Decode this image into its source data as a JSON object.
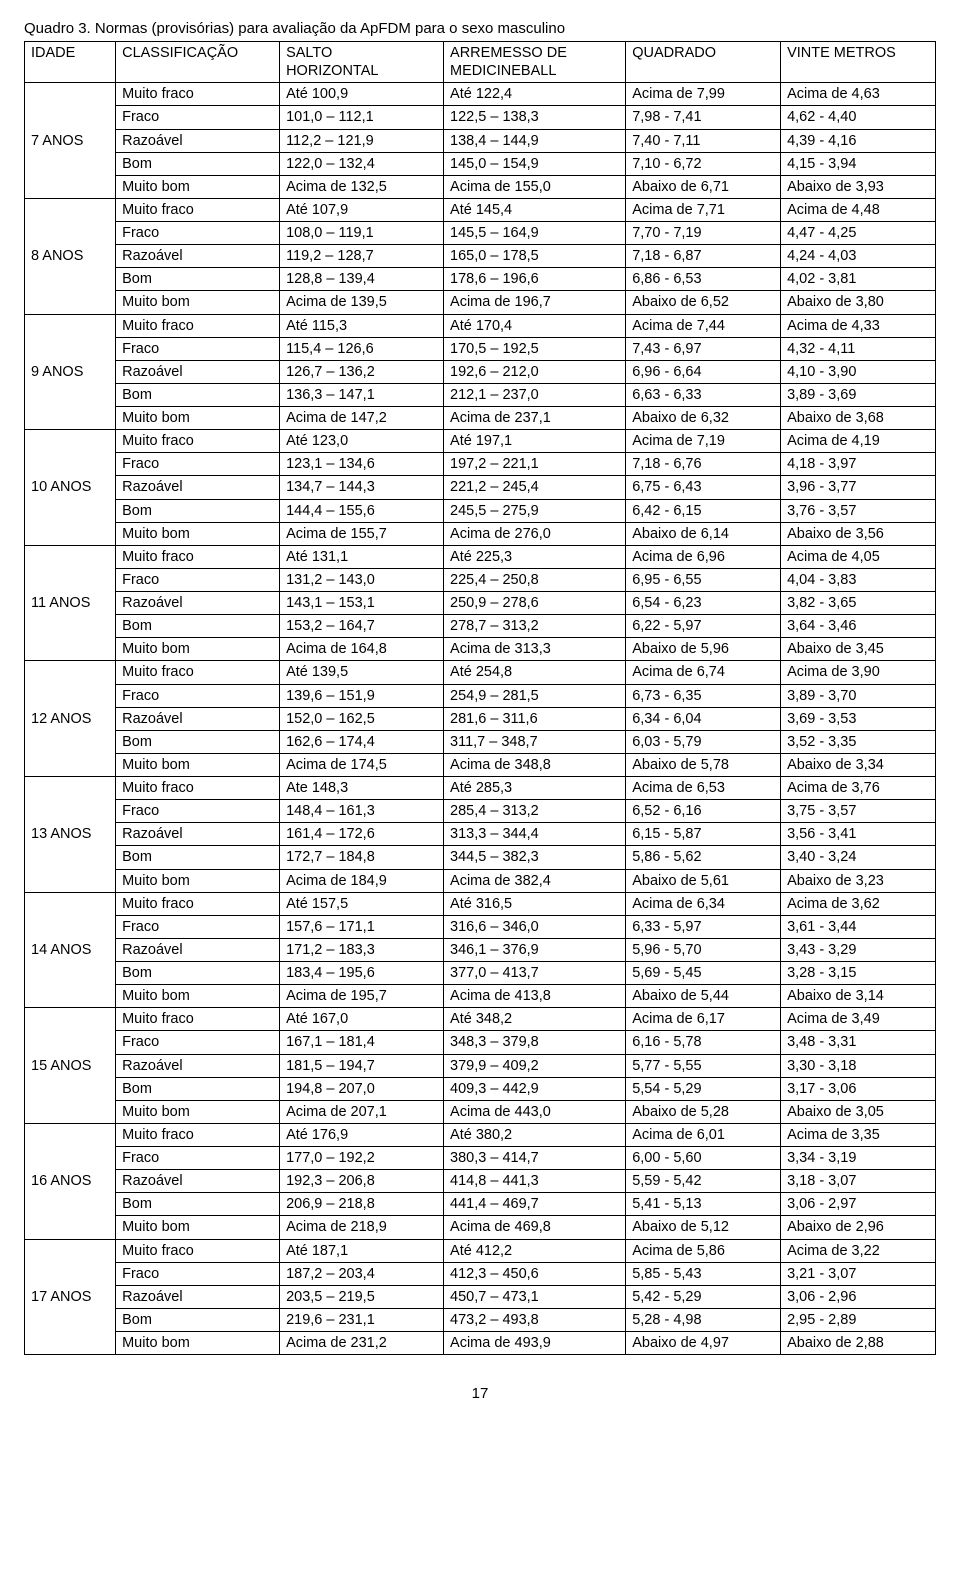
{
  "caption": "Quadro 3. Normas (provisórias) para avaliação da ApFDM para o sexo masculino",
  "headers": {
    "idade": "IDADE",
    "class": "CLASSIFICAÇÃO",
    "salto_l1": "SALTO",
    "salto_l2": "HORIZONTAL",
    "arrem_l1": "ARREMESSO DE",
    "arrem_l2": "MEDICINEBALL",
    "quad": "QUADRADO",
    "vinte": "VINTE METROS"
  },
  "groups": [
    {
      "age": "7 ANOS",
      "rows": [
        [
          "Muito fraco",
          "Até 100,9",
          "Até 122,4",
          "Acima de 7,99",
          "Acima de 4,63"
        ],
        [
          "Fraco",
          "101,0 – 112,1",
          "122,5 – 138,3",
          "7,98 - 7,41",
          "4,62 - 4,40"
        ],
        [
          "Razoável",
          "112,2 – 121,9",
          "138,4 – 144,9",
          "7,40 - 7,11",
          "4,39 - 4,16"
        ],
        [
          "Bom",
          "122,0 – 132,4",
          "145,0 – 154,9",
          "7,10 - 6,72",
          "4,15 - 3,94"
        ],
        [
          "Muito bom",
          "Acima de 132,5",
          "Acima de 155,0",
          "Abaixo de 6,71",
          "Abaixo de 3,93"
        ]
      ]
    },
    {
      "age": "8 ANOS",
      "rows": [
        [
          "Muito fraco",
          "Até 107,9",
          "Até 145,4",
          "Acima de 7,71",
          "Acima de 4,48"
        ],
        [
          "Fraco",
          "108,0 – 119,1",
          "145,5 – 164,9",
          "7,70 - 7,19",
          "4,47 - 4,25"
        ],
        [
          "Razoável",
          "119,2 – 128,7",
          "165,0 – 178,5",
          "7,18 - 6,87",
          "4,24 - 4,03"
        ],
        [
          "Bom",
          "128,8 – 139,4",
          "178,6 – 196,6",
          "6,86 - 6,53",
          "4,02 - 3,81"
        ],
        [
          "Muito bom",
          "Acima de 139,5",
          "Acima de 196,7",
          "Abaixo de 6,52",
          "Abaixo de 3,80"
        ]
      ]
    },
    {
      "age": "9 ANOS",
      "rows": [
        [
          "Muito fraco",
          "Até 115,3",
          "Até 170,4",
          "Acima de 7,44",
          "Acima de 4,33"
        ],
        [
          "Fraco",
          "115,4 – 126,6",
          "170,5 – 192,5",
          "7,43 - 6,97",
          "4,32 - 4,11"
        ],
        [
          "Razoável",
          "126,7 – 136,2",
          "192,6 – 212,0",
          "6,96 - 6,64",
          "4,10 - 3,90"
        ],
        [
          "Bom",
          "136,3 – 147,1",
          "212,1 – 237,0",
          "6,63 - 6,33",
          "3,89 - 3,69"
        ],
        [
          "Muito bom",
          "Acima de 147,2",
          "Acima de 237,1",
          "Abaixo de 6,32",
          "Abaixo de 3,68"
        ]
      ]
    },
    {
      "age": "10 ANOS",
      "rows": [
        [
          "Muito fraco",
          "Até 123,0",
          "Até 197,1",
          "Acima de 7,19",
          "Acima de 4,19"
        ],
        [
          "Fraco",
          "123,1 – 134,6",
          "197,2 – 221,1",
          "7,18 - 6,76",
          "4,18 - 3,97"
        ],
        [
          "Razoável",
          "134,7 – 144,3",
          "221,2 – 245,4",
          "6,75 - 6,43",
          "3,96 - 3,77"
        ],
        [
          "Bom",
          "144,4 – 155,6",
          "245,5 – 275,9",
          "6,42 - 6,15",
          "3,76 - 3,57"
        ],
        [
          "Muito bom",
          "Acima de 155,7",
          "Acima de 276,0",
          "Abaixo de 6,14",
          "Abaixo de 3,56"
        ]
      ]
    },
    {
      "age": "11 ANOS",
      "rows": [
        [
          "Muito fraco",
          "Até 131,1",
          "Até 225,3",
          "Acima de 6,96",
          "Acima de 4,05"
        ],
        [
          "Fraco",
          "131,2 – 143,0",
          "225,4 – 250,8",
          "6,95 - 6,55",
          "4,04 - 3,83"
        ],
        [
          "Razoável",
          "143,1 – 153,1",
          "250,9 – 278,6",
          "6,54 - 6,23",
          "3,82 - 3,65"
        ],
        [
          "Bom",
          "153,2 – 164,7",
          "278,7 – 313,2",
          "6,22 - 5,97",
          "3,64 - 3,46"
        ],
        [
          "Muito bom",
          "Acima de 164,8",
          "Acima de 313,3",
          "Abaixo de 5,96",
          "Abaixo de 3,45"
        ]
      ]
    },
    {
      "age": "12 ANOS",
      "rows": [
        [
          "Muito fraco",
          "Até 139,5",
          "Até 254,8",
          "Acima de 6,74",
          "Acima de 3,90"
        ],
        [
          "Fraco",
          "139,6 – 151,9",
          "254,9 – 281,5",
          "6,73 - 6,35",
          "3,89 - 3,70"
        ],
        [
          "Razoável",
          "152,0 – 162,5",
          "281,6 – 311,6",
          "6,34 - 6,04",
          "3,69 - 3,53"
        ],
        [
          "Bom",
          "162,6 – 174,4",
          "311,7 – 348,7",
          "6,03 - 5,79",
          "3,52 - 3,35"
        ],
        [
          "Muito bom",
          "Acima de 174,5",
          "Acima de 348,8",
          "Abaixo de 5,78",
          "Abaixo de 3,34"
        ]
      ]
    },
    {
      "age": "13 ANOS",
      "rows": [
        [
          "Muito fraco",
          "Ate 148,3",
          "Até 285,3",
          "Acima de 6,53",
          "Acima de 3,76"
        ],
        [
          "Fraco",
          "148,4 – 161,3",
          "285,4 – 313,2",
          "6,52 - 6,16",
          "3,75 - 3,57"
        ],
        [
          "Razoável",
          "161,4 – 172,6",
          "313,3 – 344,4",
          "6,15 - 5,87",
          "3,56 - 3,41"
        ],
        [
          "Bom",
          "172,7 – 184,8",
          "344,5 – 382,3",
          "5,86 - 5,62",
          "3,40 - 3,24"
        ],
        [
          "Muito bom",
          "Acima de 184,9",
          "Acima de 382,4",
          "Abaixo de 5,61",
          "Abaixo de 3,23"
        ]
      ]
    },
    {
      "age": "14 ANOS",
      "rows": [
        [
          "Muito fraco",
          "Até 157,5",
          "Até 316,5",
          "Acima de 6,34",
          "Acima de 3,62"
        ],
        [
          "Fraco",
          "157,6 – 171,1",
          "316,6 – 346,0",
          "6,33 - 5,97",
          "3,61 - 3,44"
        ],
        [
          "Razoável",
          "171,2 – 183,3",
          "346,1 – 376,9",
          "5,96 - 5,70",
          "3,43 - 3,29"
        ],
        [
          "Bom",
          "183,4 – 195,6",
          "377,0 – 413,7",
          "5,69 - 5,45",
          "3,28 - 3,15"
        ],
        [
          "Muito bom",
          "Acima de 195,7",
          "Acima de 413,8",
          "Abaixo de 5,44",
          "Abaixo de 3,14"
        ]
      ]
    },
    {
      "age": "15 ANOS",
      "rows": [
        [
          "Muito fraco",
          "Até 167,0",
          "Até 348,2",
          "Acima de 6,17",
          "Acima de 3,49"
        ],
        [
          "Fraco",
          "167,1 – 181,4",
          "348,3 – 379,8",
          "6,16 - 5,78",
          "3,48 - 3,31"
        ],
        [
          "Razoável",
          "181,5 – 194,7",
          "379,9 – 409,2",
          "5,77 - 5,55",
          "3,30 - 3,18"
        ],
        [
          "Bom",
          "194,8 – 207,0",
          "409,3 – 442,9",
          "5,54 - 5,29",
          "3,17 - 3,06"
        ],
        [
          "Muito bom",
          "Acima de 207,1",
          "Acima de 443,0",
          "Abaixo de 5,28",
          "Abaixo de 3,05"
        ]
      ]
    },
    {
      "age": "16 ANOS",
      "rows": [
        [
          "Muito fraco",
          "Até 176,9",
          "Até 380,2",
          "Acima de 6,01",
          "Acima de 3,35"
        ],
        [
          "Fraco",
          "177,0 – 192,2",
          "380,3 – 414,7",
          "6,00 - 5,60",
          "3,34 - 3,19"
        ],
        [
          "Razoável",
          "192,3 – 206,8",
          "414,8 – 441,3",
          "5,59 - 5,42",
          "3,18 - 3,07"
        ],
        [
          "Bom",
          "206,9 – 218,8",
          "441,4 – 469,7",
          "5,41 - 5,13",
          "3,06 - 2,97"
        ],
        [
          "Muito bom",
          "Acima de 218,9",
          "Acima de 469,8",
          "Abaixo de 5,12",
          "Abaixo de 2,96"
        ]
      ]
    },
    {
      "age": "17 ANOS",
      "rows": [
        [
          "Muito fraco",
          "Até 187,1",
          "Até 412,2",
          "Acima de 5,86",
          "Acima de 3,22"
        ],
        [
          "Fraco",
          "187,2 – 203,4",
          "412,3 – 450,6",
          "5,85 - 5,43",
          "3,21 - 3,07"
        ],
        [
          "Razoável",
          "203,5 – 219,5",
          "450,7 – 473,1",
          "5,42 - 5,29",
          "3,06 - 2,96"
        ],
        [
          "Bom",
          "219,6 – 231,1",
          "473,2 – 493,8",
          "5,28 - 4,98",
          "2,95 - 2,89"
        ],
        [
          "Muito bom",
          "Acima de 231,2",
          "Acima de 493,9",
          "Abaixo de 4,97",
          "Abaixo de 2,88"
        ]
      ]
    }
  ],
  "page_number": "17"
}
